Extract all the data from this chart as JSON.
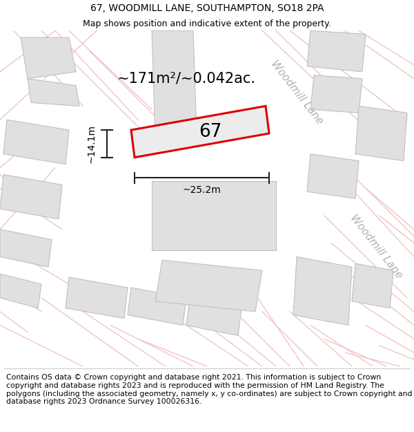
{
  "title_line1": "67, WOODMILL LANE, SOUTHAMPTON, SO18 2PA",
  "title_line2": "Map shows position and indicative extent of the property.",
  "footer_text": "Contains OS data © Crown copyright and database right 2021. This information is subject to Crown copyright and database rights 2023 and is reproduced with the permission of HM Land Registry. The polygons (including the associated geometry, namely x, y co-ordinates) are subject to Crown copyright and database rights 2023 Ordnance Survey 100026316.",
  "map_bg": "#f7f7f7",
  "building_fill": "#e0e0e0",
  "building_edge": "#c0c0c0",
  "road_color": "#f2c4c4",
  "highlight_fill": "#ececec",
  "highlight_edge": "#dd0000",
  "area_text": "~171m²/~0.042ac.",
  "number_text": "67",
  "width_text": "~25.2m",
  "height_text": "~14.1m",
  "road_label_upper": "Woodmill Lane",
  "road_label_lower": "Woodmill Lane",
  "title_fontsize": 10,
  "subtitle_fontsize": 9,
  "footer_fontsize": 7.8,
  "area_fontsize": 15,
  "number_fontsize": 19,
  "dim_fontsize": 10,
  "road_label_fontsize": 11
}
